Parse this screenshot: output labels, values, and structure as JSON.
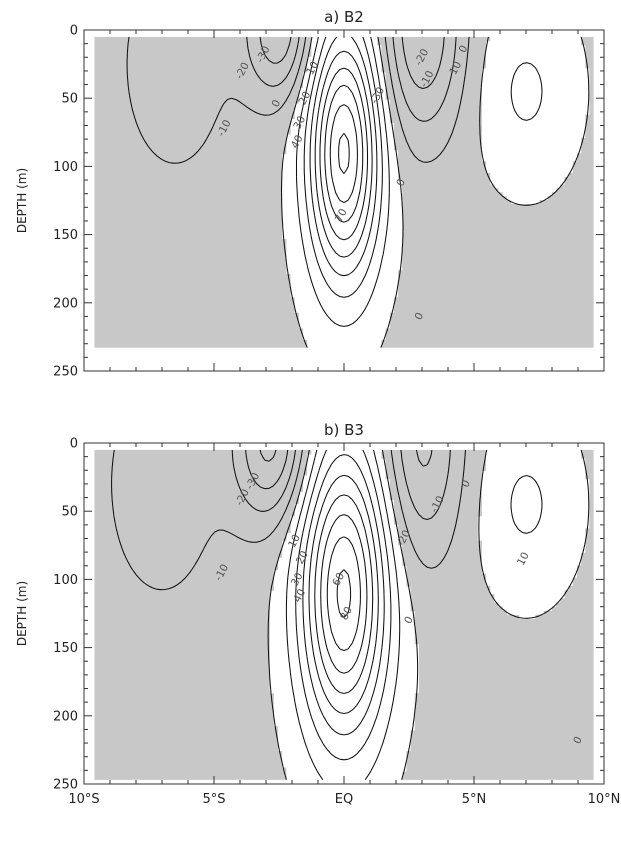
{
  "chart_data": [
    {
      "type": "contour",
      "title": "a) B2",
      "ylabel": "DEPTH (m)",
      "xlabel": "",
      "xlim": [
        -10,
        10
      ],
      "ylim": [
        250,
        0
      ],
      "y_inverted": true,
      "xticks": [
        -10,
        -5,
        0,
        5,
        10
      ],
      "xtick_labels": [
        "10°S",
        "5°S",
        "EQ",
        "5°N",
        "10°N"
      ],
      "yticks": [
        0,
        50,
        100,
        150,
        200,
        250
      ],
      "ytick_labels": [
        "0",
        "50",
        "100",
        "150",
        "200",
        "250"
      ],
      "data_extent": {
        "x": [
          -9.6,
          9.6
        ],
        "depth": [
          5,
          233
        ]
      },
      "shading": "negative values shaded grey",
      "contour_interval": 10,
      "max": {
        "value": 80,
        "x": 0,
        "depth": 90
      },
      "contour_labels": [
        "-30",
        "-20",
        "-10",
        "0",
        "10",
        "20",
        "30",
        "40",
        "70",
        "0",
        "0",
        "-30",
        "-20",
        "-10",
        "10",
        "0"
      ]
    },
    {
      "type": "contour",
      "title": "b) B3",
      "ylabel": "DEPTH (m)",
      "xlabel": "",
      "xlim": [
        -10,
        10
      ],
      "ylim": [
        250,
        0
      ],
      "y_inverted": true,
      "xticks": [
        -10,
        -5,
        0,
        5,
        10
      ],
      "xtick_labels": [
        "10°S",
        "5°S",
        "EQ",
        "5°N",
        "10°N"
      ],
      "yticks": [
        0,
        50,
        100,
        150,
        200,
        250
      ],
      "ytick_labels": [
        "0",
        "50",
        "100",
        "150",
        "200",
        "250"
      ],
      "data_extent": {
        "x": [
          -9.6,
          9.6
        ],
        "depth": [
          5,
          247
        ]
      },
      "shading": "negative values shaded grey",
      "contour_interval": 10,
      "max": {
        "value": 80,
        "x": 0,
        "depth": 110
      },
      "contour_labels": [
        "-30",
        "-20",
        "-10",
        "10",
        "20",
        "30",
        "40",
        "80",
        "60",
        "0",
        "-20",
        "-10",
        "0",
        "10",
        "0"
      ]
    }
  ]
}
